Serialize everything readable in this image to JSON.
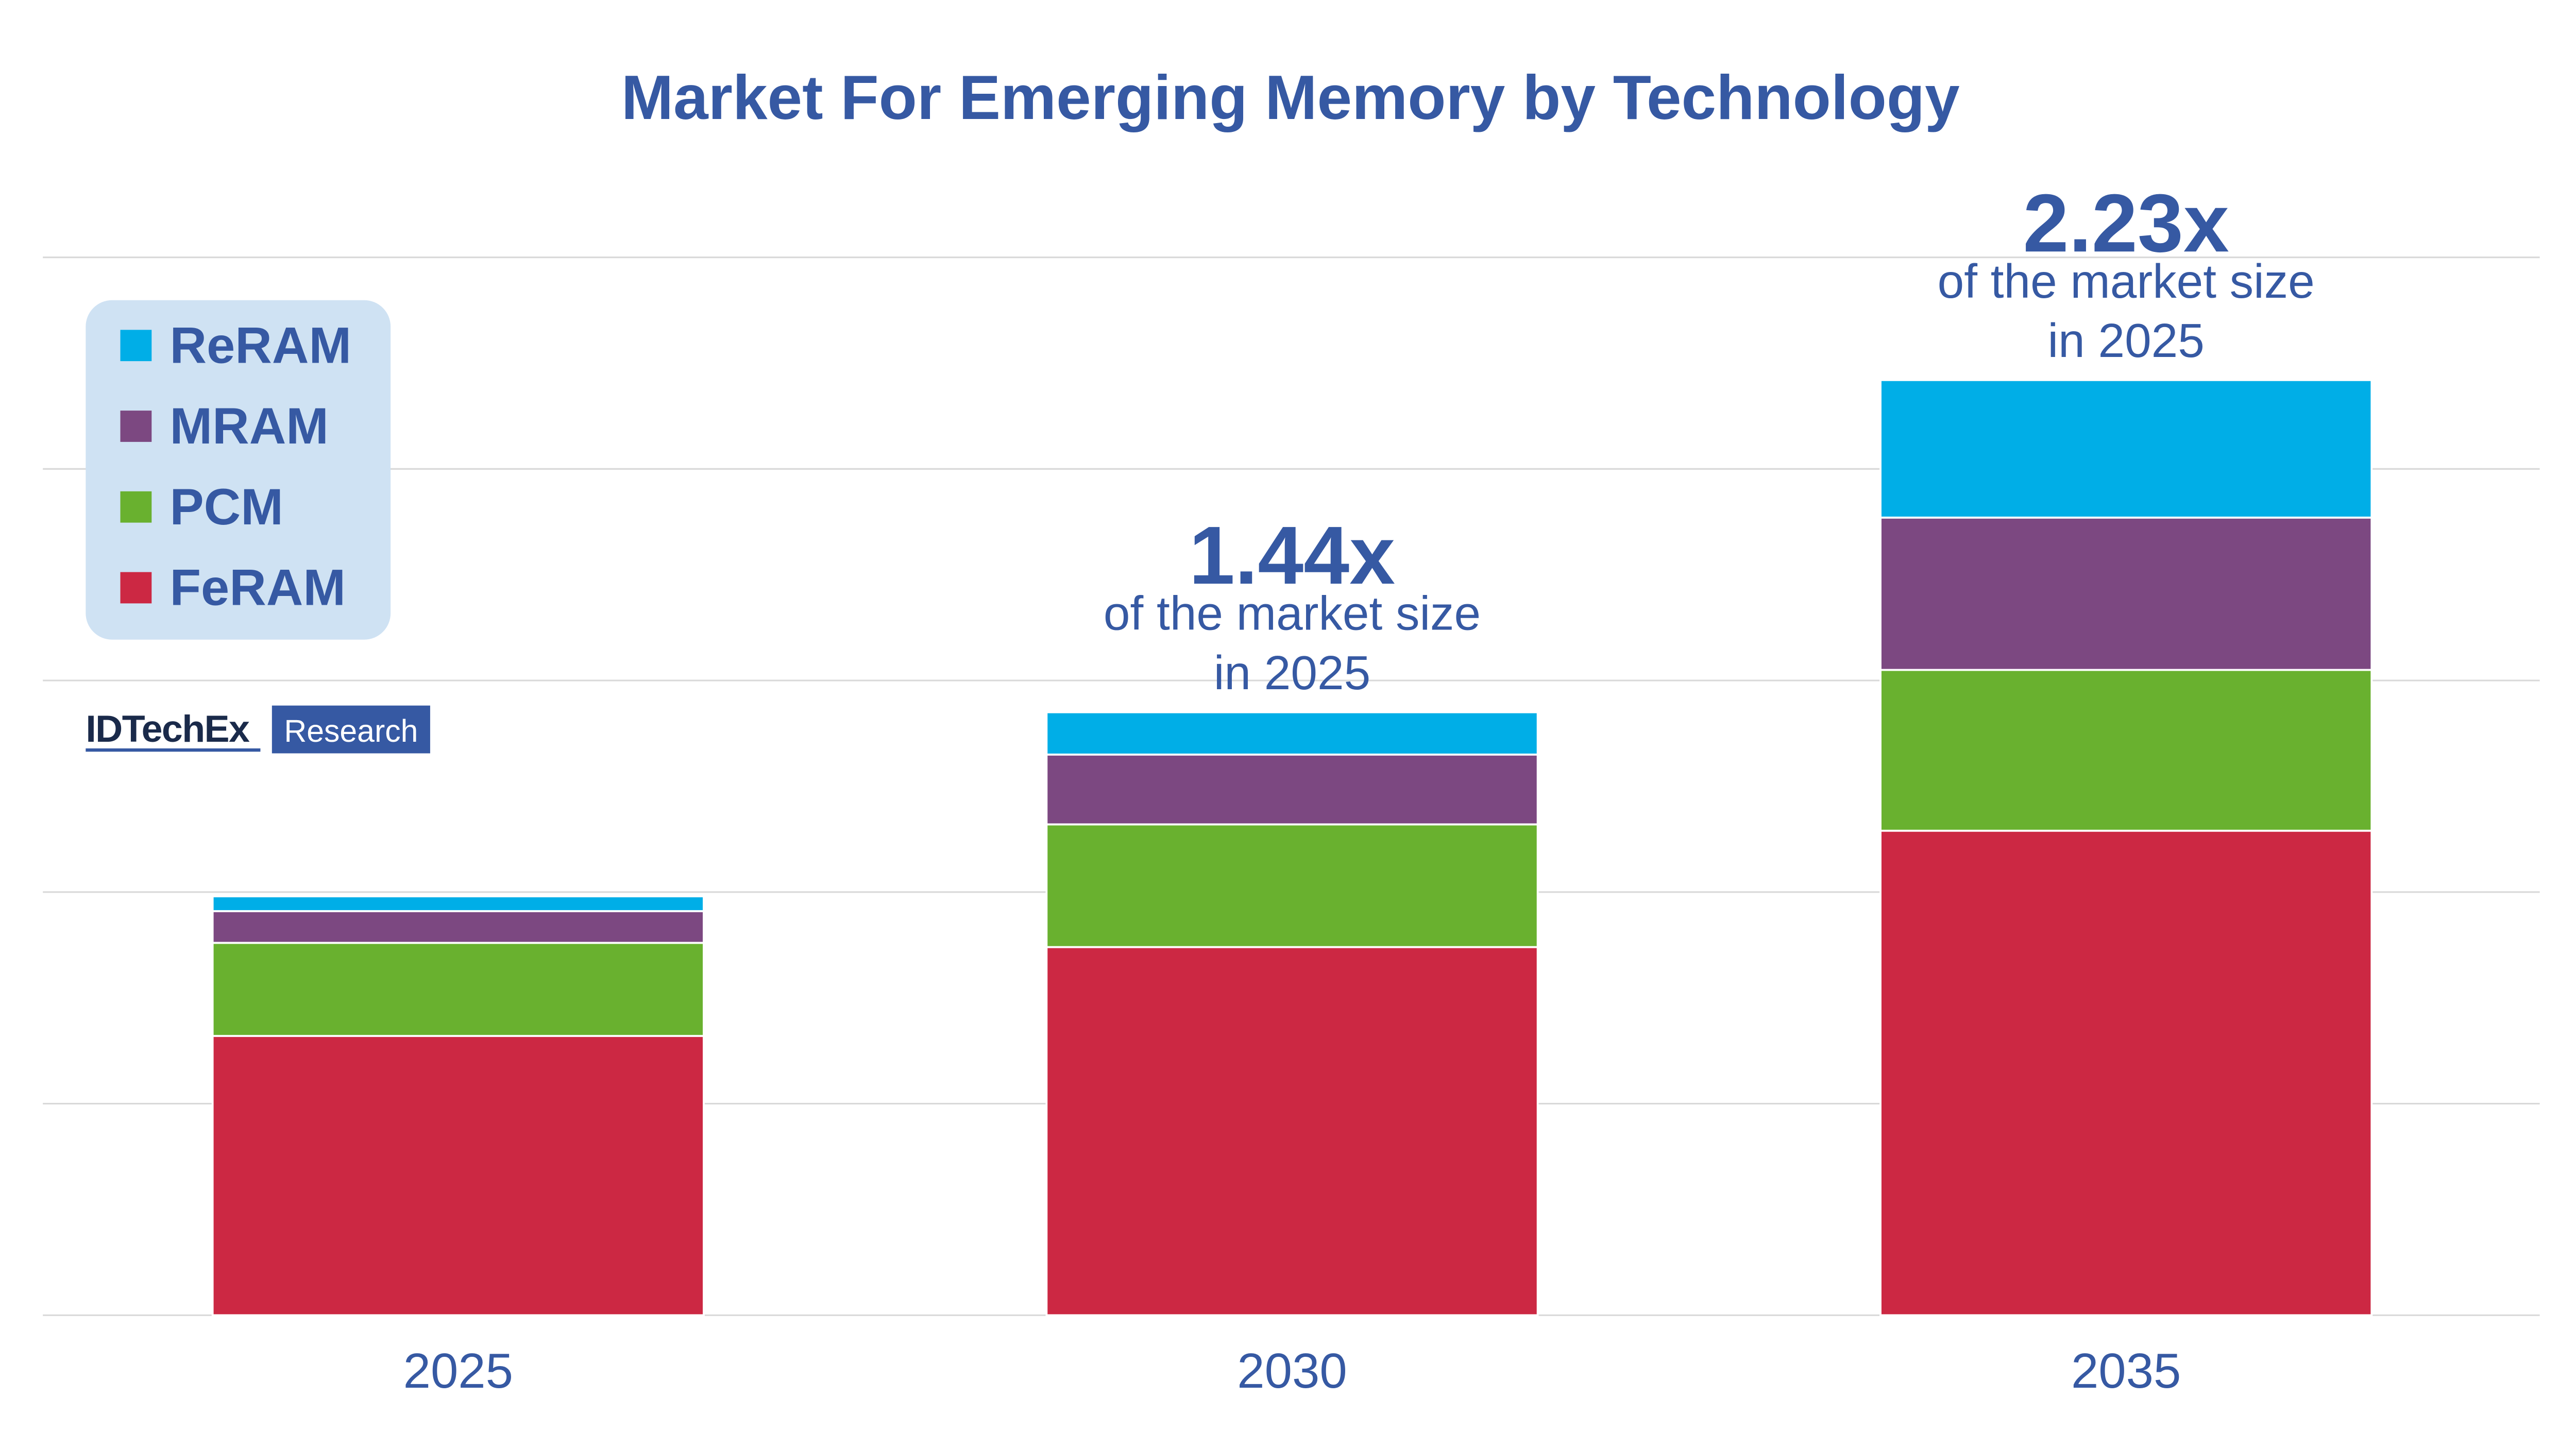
{
  "chart_data": {
    "type": "bar",
    "stacked": true,
    "title": "Market For Emerging Memory by Technology",
    "xlabel": "",
    "ylabel": "",
    "categories": [
      "2025",
      "2030",
      "2035"
    ],
    "ylim": [
      0,
      5
    ],
    "grid": true,
    "legend_placement": "top-left",
    "series": [
      {
        "name": "FeRAM",
        "color": "#cc2843",
        "values": [
          1.32,
          1.74,
          2.29
        ]
      },
      {
        "name": "PCM",
        "color": "#69b12f",
        "values": [
          0.44,
          0.58,
          0.76
        ]
      },
      {
        "name": "MRAM",
        "color": "#7c4881",
        "values": [
          0.15,
          0.33,
          0.72
        ]
      },
      {
        "name": "ReRAM",
        "color": "#00aee7",
        "values": [
          0.07,
          0.2,
          0.65
        ]
      }
    ],
    "legend_order": [
      "ReRAM",
      "MRAM",
      "PCM",
      "FeRAM"
    ],
    "annotations": [
      {
        "category": "2030",
        "value": "1.44x",
        "text_line1": "of the market size",
        "text_line2": "in 2025"
      },
      {
        "category": "2035",
        "value": "2.23x",
        "text_line1": "of the market size",
        "text_line2": "in 2025"
      }
    ]
  },
  "logo": {
    "name": "IDTechEx",
    "tag": "Research"
  },
  "colors": {
    "title": "#3659a3",
    "legend_bg": "#cfe2f3",
    "grid": "#d9d9d9"
  }
}
